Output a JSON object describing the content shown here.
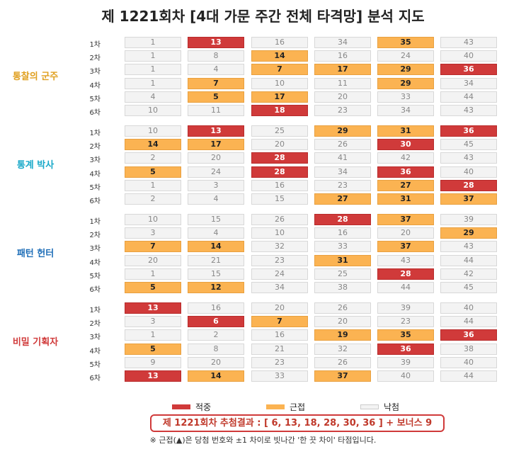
{
  "title": "제 1221회차 [4대 가문 주간 전체 타격망] 분석 지도",
  "colors": {
    "hit": "#d03a3a",
    "near": "#fbb352",
    "miss": "#f3f3f3",
    "text_dim": "#888888"
  },
  "chart_data": {
    "type": "table",
    "row_labels": [
      "1차",
      "2차",
      "3차",
      "4차",
      "5차",
      "6차"
    ],
    "groups": [
      {
        "name": "통찰의 군주",
        "color": "#e0a020",
        "rows": [
          [
            {
              "v": 1,
              "s": "miss"
            },
            {
              "v": 13,
              "s": "hit"
            },
            {
              "v": 16,
              "s": "miss"
            },
            {
              "v": 34,
              "s": "miss"
            },
            {
              "v": 35,
              "s": "near"
            },
            {
              "v": 43,
              "s": "miss"
            }
          ],
          [
            {
              "v": 1,
              "s": "miss"
            },
            {
              "v": 8,
              "s": "miss"
            },
            {
              "v": 14,
              "s": "near"
            },
            {
              "v": 16,
              "s": "miss"
            },
            {
              "v": 24,
              "s": "miss"
            },
            {
              "v": 40,
              "s": "miss"
            }
          ],
          [
            {
              "v": 1,
              "s": "miss"
            },
            {
              "v": 4,
              "s": "miss"
            },
            {
              "v": 7,
              "s": "near"
            },
            {
              "v": 17,
              "s": "near"
            },
            {
              "v": 29,
              "s": "near"
            },
            {
              "v": 36,
              "s": "hit"
            }
          ],
          [
            {
              "v": 1,
              "s": "miss"
            },
            {
              "v": 7,
              "s": "near"
            },
            {
              "v": 10,
              "s": "miss"
            },
            {
              "v": 11,
              "s": "miss"
            },
            {
              "v": 29,
              "s": "near"
            },
            {
              "v": 34,
              "s": "miss"
            }
          ],
          [
            {
              "v": 4,
              "s": "miss"
            },
            {
              "v": 5,
              "s": "near"
            },
            {
              "v": 17,
              "s": "near"
            },
            {
              "v": 20,
              "s": "miss"
            },
            {
              "v": 33,
              "s": "miss"
            },
            {
              "v": 44,
              "s": "miss"
            }
          ],
          [
            {
              "v": 10,
              "s": "miss"
            },
            {
              "v": 11,
              "s": "miss"
            },
            {
              "v": 18,
              "s": "hit"
            },
            {
              "v": 23,
              "s": "miss"
            },
            {
              "v": 34,
              "s": "miss"
            },
            {
              "v": 43,
              "s": "miss"
            }
          ]
        ]
      },
      {
        "name": "통계 박사",
        "color": "#1aa9c9",
        "rows": [
          [
            {
              "v": 10,
              "s": "miss"
            },
            {
              "v": 13,
              "s": "hit"
            },
            {
              "v": 25,
              "s": "miss"
            },
            {
              "v": 29,
              "s": "near"
            },
            {
              "v": 31,
              "s": "near"
            },
            {
              "v": 36,
              "s": "hit"
            }
          ],
          [
            {
              "v": 14,
              "s": "near"
            },
            {
              "v": 17,
              "s": "near"
            },
            {
              "v": 20,
              "s": "miss"
            },
            {
              "v": 26,
              "s": "miss"
            },
            {
              "v": 30,
              "s": "hit"
            },
            {
              "v": 45,
              "s": "miss"
            }
          ],
          [
            {
              "v": 2,
              "s": "miss"
            },
            {
              "v": 20,
              "s": "miss"
            },
            {
              "v": 28,
              "s": "hit"
            },
            {
              "v": 41,
              "s": "miss"
            },
            {
              "v": 42,
              "s": "miss"
            },
            {
              "v": 43,
              "s": "miss"
            }
          ],
          [
            {
              "v": 5,
              "s": "near"
            },
            {
              "v": 24,
              "s": "miss"
            },
            {
              "v": 28,
              "s": "hit"
            },
            {
              "v": 34,
              "s": "miss"
            },
            {
              "v": 36,
              "s": "hit"
            },
            {
              "v": 40,
              "s": "miss"
            }
          ],
          [
            {
              "v": 1,
              "s": "miss"
            },
            {
              "v": 3,
              "s": "miss"
            },
            {
              "v": 16,
              "s": "miss"
            },
            {
              "v": 23,
              "s": "miss"
            },
            {
              "v": 27,
              "s": "near"
            },
            {
              "v": 28,
              "s": "hit"
            }
          ],
          [
            {
              "v": 2,
              "s": "miss"
            },
            {
              "v": 4,
              "s": "miss"
            },
            {
              "v": 15,
              "s": "miss"
            },
            {
              "v": 27,
              "s": "near"
            },
            {
              "v": 31,
              "s": "near"
            },
            {
              "v": 37,
              "s": "near"
            }
          ]
        ]
      },
      {
        "name": "패턴 헌터",
        "color": "#1f6fb8",
        "rows": [
          [
            {
              "v": 10,
              "s": "miss"
            },
            {
              "v": 15,
              "s": "miss"
            },
            {
              "v": 26,
              "s": "miss"
            },
            {
              "v": 28,
              "s": "hit"
            },
            {
              "v": 37,
              "s": "near"
            },
            {
              "v": 39,
              "s": "miss"
            }
          ],
          [
            {
              "v": 3,
              "s": "miss"
            },
            {
              "v": 4,
              "s": "miss"
            },
            {
              "v": 10,
              "s": "miss"
            },
            {
              "v": 16,
              "s": "miss"
            },
            {
              "v": 20,
              "s": "miss"
            },
            {
              "v": 29,
              "s": "near"
            }
          ],
          [
            {
              "v": 7,
              "s": "near"
            },
            {
              "v": 14,
              "s": "near"
            },
            {
              "v": 32,
              "s": "miss"
            },
            {
              "v": 33,
              "s": "miss"
            },
            {
              "v": 37,
              "s": "near"
            },
            {
              "v": 43,
              "s": "miss"
            }
          ],
          [
            {
              "v": 20,
              "s": "miss"
            },
            {
              "v": 21,
              "s": "miss"
            },
            {
              "v": 23,
              "s": "miss"
            },
            {
              "v": 31,
              "s": "near"
            },
            {
              "v": 43,
              "s": "miss"
            },
            {
              "v": 44,
              "s": "miss"
            }
          ],
          [
            {
              "v": 1,
              "s": "miss"
            },
            {
              "v": 15,
              "s": "miss"
            },
            {
              "v": 24,
              "s": "miss"
            },
            {
              "v": 25,
              "s": "miss"
            },
            {
              "v": 28,
              "s": "hit"
            },
            {
              "v": 42,
              "s": "miss"
            }
          ],
          [
            {
              "v": 5,
              "s": "near"
            },
            {
              "v": 12,
              "s": "near"
            },
            {
              "v": 34,
              "s": "miss"
            },
            {
              "v": 38,
              "s": "miss"
            },
            {
              "v": 44,
              "s": "miss"
            },
            {
              "v": 45,
              "s": "miss"
            }
          ]
        ]
      },
      {
        "name": "비밀 기획자",
        "color": "#d03a3a",
        "rows": [
          [
            {
              "v": 13,
              "s": "hit"
            },
            {
              "v": 16,
              "s": "miss"
            },
            {
              "v": 20,
              "s": "miss"
            },
            {
              "v": 26,
              "s": "miss"
            },
            {
              "v": 39,
              "s": "miss"
            },
            {
              "v": 40,
              "s": "miss"
            }
          ],
          [
            {
              "v": 3,
              "s": "miss"
            },
            {
              "v": 6,
              "s": "hit"
            },
            {
              "v": 7,
              "s": "near"
            },
            {
              "v": 20,
              "s": "miss"
            },
            {
              "v": 23,
              "s": "miss"
            },
            {
              "v": 44,
              "s": "miss"
            }
          ],
          [
            {
              "v": 1,
              "s": "miss"
            },
            {
              "v": 2,
              "s": "miss"
            },
            {
              "v": 16,
              "s": "miss"
            },
            {
              "v": 19,
              "s": "near"
            },
            {
              "v": 35,
              "s": "near"
            },
            {
              "v": 36,
              "s": "hit"
            }
          ],
          [
            {
              "v": 5,
              "s": "near"
            },
            {
              "v": 8,
              "s": "miss"
            },
            {
              "v": 21,
              "s": "miss"
            },
            {
              "v": 32,
              "s": "miss"
            },
            {
              "v": 36,
              "s": "hit"
            },
            {
              "v": 38,
              "s": "miss"
            }
          ],
          [
            {
              "v": 9,
              "s": "miss"
            },
            {
              "v": 20,
              "s": "miss"
            },
            {
              "v": 23,
              "s": "miss"
            },
            {
              "v": 26,
              "s": "miss"
            },
            {
              "v": 39,
              "s": "miss"
            },
            {
              "v": 40,
              "s": "miss"
            }
          ],
          [
            {
              "v": 13,
              "s": "hit"
            },
            {
              "v": 14,
              "s": "near"
            },
            {
              "v": 33,
              "s": "miss"
            },
            {
              "v": 37,
              "s": "near"
            },
            {
              "v": 40,
              "s": "miss"
            },
            {
              "v": 44,
              "s": "miss"
            }
          ]
        ]
      }
    ],
    "legend": [
      {
        "label": "적중",
        "status": "hit"
      },
      {
        "label": "근접",
        "status": "near"
      },
      {
        "label": "낙첨",
        "status": "miss"
      }
    ]
  },
  "result_text": "제 1221회차 추첨결과 : [ 6, 13, 18, 28, 30, 36 ]  +  보너스 9",
  "footnote": "※ 근접(▲)은 당첨 번호와 ±1 차이로 빗나간 '한 끗 차이' 타점입니다."
}
